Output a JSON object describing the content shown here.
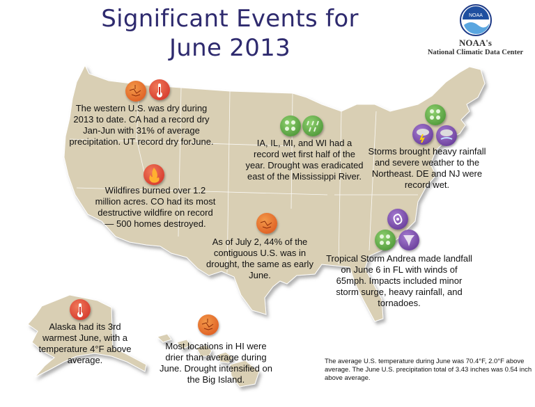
{
  "title_line1": "Significant Events for",
  "title_line2": "June 2013",
  "logo": {
    "badge_text": "NOAA",
    "name": "NOAA's",
    "subtitle": "National Climatic Data Center"
  },
  "callouts": {
    "west": "The western U.S. was dry during 2013 to date. CA had a record dry Jan-Jun with 31% of average precipitation. UT record dry forJune.",
    "wildfires": "Wildfires burned over 1.2 million acres. CO had its most destructive wildfire on record — 500 homes destroyed.",
    "midwest": "IA, IL, MI, and WI had a record wet first half of the year. Drought was eradicated east of the Mississippi River.",
    "northeast": "Storms brought heavy rainfall and severe weather to the Northeast. DE and NJ were record wet.",
    "drought": "As of July 2, 44% of the contiguous U.S. was in drought, the same as early June.",
    "andrea": "Tropical Storm Andrea made landfall on June 6 in FL with winds of 65mph. Impacts included minor storm surge, heavy rainfall, and tornadoes.",
    "alaska": "Alaska had its 3rd warmest June, with a temperature 4°F above average.",
    "hawaii": "Most locations in HI were drier than average during June. Drought intensified on the Big Island."
  },
  "summary": "The average U.S. temperature during June was 70.4°F, 2.0°F above average. The June U.S. precipitation total of 3.43 inches was 0.54 inch above average.",
  "colors": {
    "title": "#2e2a6e",
    "land": "#d9cfb4",
    "land_border": "#ffffff",
    "shadow": "#8a8a8a",
    "dry_icon": "#e0581c",
    "warm_icon": "#d9242a",
    "wet_icon": "#4f9a3c",
    "storm_icon": "#6a3f9a"
  },
  "icons": [
    "drought-icon",
    "heat-icon",
    "wildfire-icon",
    "rain-icon",
    "storm-icon",
    "tornado-icon",
    "hurricane-icon"
  ]
}
